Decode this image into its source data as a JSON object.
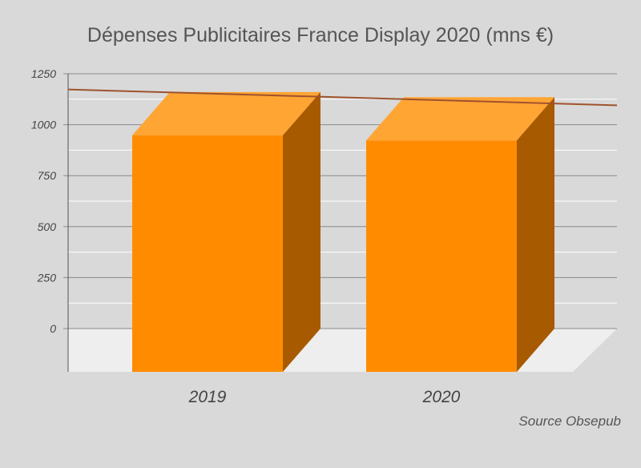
{
  "chart_data": {
    "type": "bar",
    "title": "Dépenses Publicitaires France Display 2020 (mns €)",
    "source": "Source Obsepub",
    "categories": [
      "2019",
      "2020"
    ],
    "values": [
      1160,
      1135
    ],
    "yticks": [
      1250,
      1000,
      750,
      500,
      250,
      0
    ],
    "ylim": [
      0,
      1250
    ],
    "grid": true,
    "trendline": true,
    "colors": {
      "bar_front": "#ff8c00",
      "bar_top": "#ffa534",
      "bar_side": "#a85a00",
      "floor": "#eeeeee",
      "trendline": "#a0522d",
      "grid": "#ffffff"
    }
  }
}
